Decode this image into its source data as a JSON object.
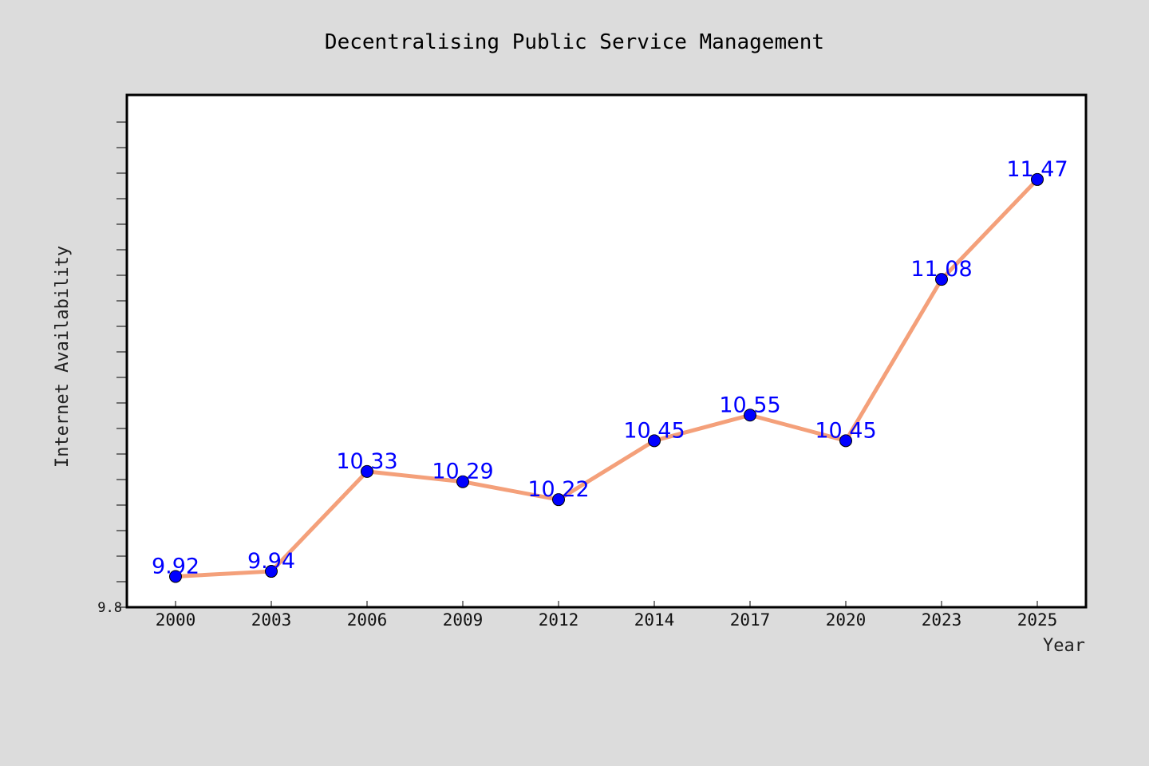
{
  "chart_data": {
    "type": "line",
    "title": "Decentralising Public Service Management",
    "xlabel": "Year",
    "ylabel": "Internet Availability",
    "categories": [
      "2000",
      "2003",
      "2006",
      "2009",
      "2012",
      "2014",
      "2017",
      "2020",
      "2023",
      "2025"
    ],
    "series": [
      {
        "values": [
          9.92,
          9.94,
          10.33,
          10.29,
          10.22,
          10.45,
          10.55,
          10.45,
          11.08,
          11.47
        ]
      }
    ],
    "data_labels": [
      "9.92",
      "9.94",
      "10.33",
      "10.29",
      "10.22",
      "10.45",
      "10.55",
      "10.45",
      "11.08",
      "11.47]"
    ],
    "yticks": [
      {
        "value": 9.8,
        "label": "9.8"
      }
    ],
    "ylim": [
      9.8,
      11.8
    ],
    "grid": false,
    "colors": {
      "background": "#dcdcdc",
      "plot_background": "#ffffff",
      "line": "#f4a07a",
      "marker": "#0000ff",
      "label": "#0000ff"
    }
  }
}
